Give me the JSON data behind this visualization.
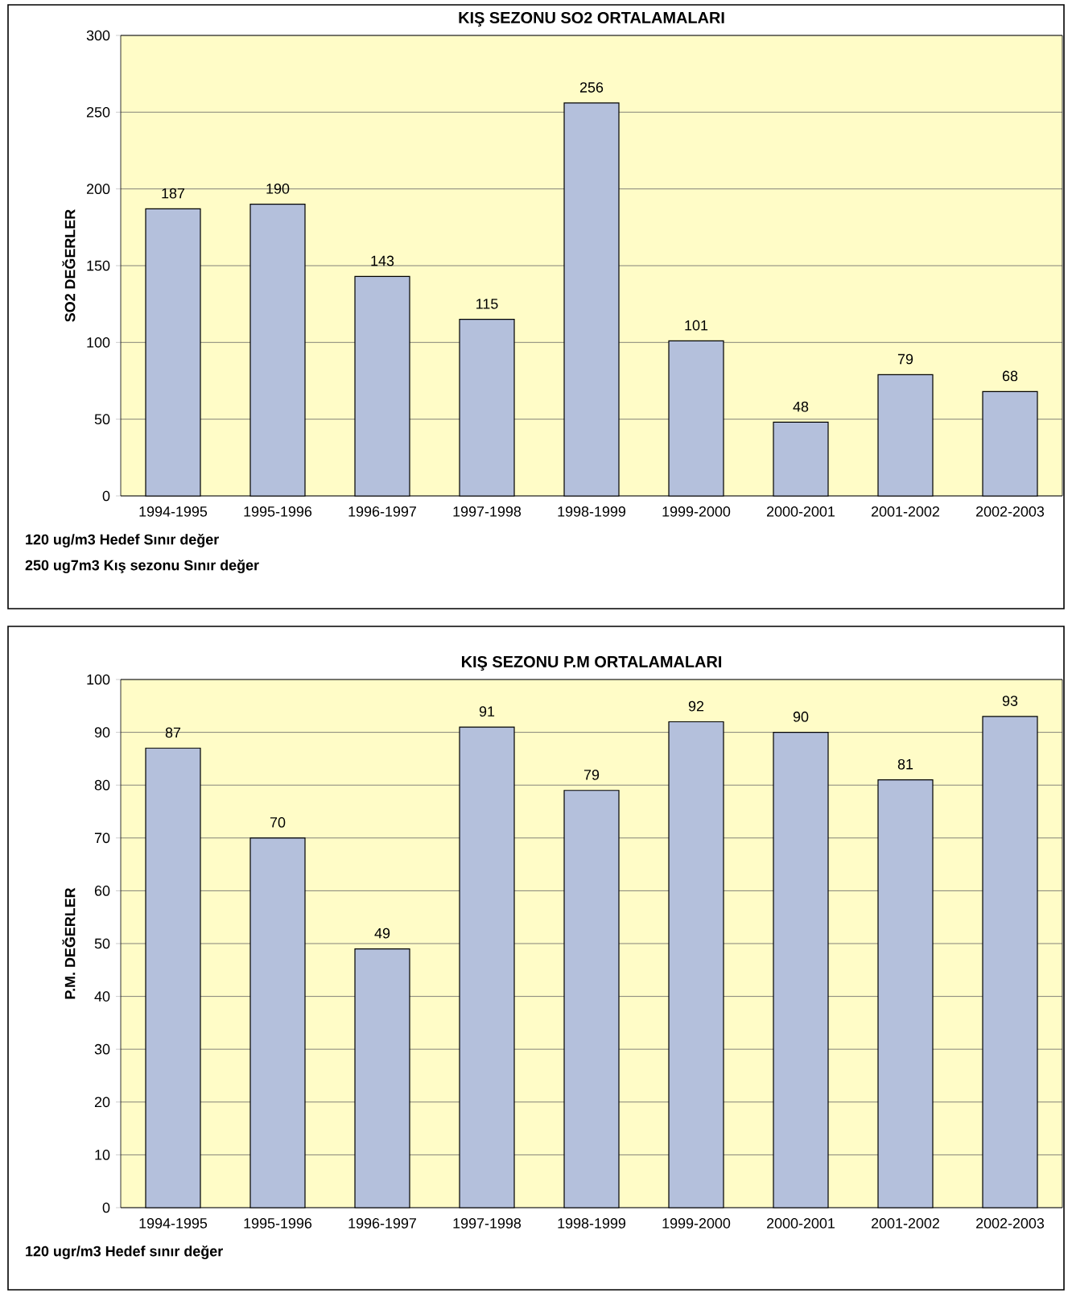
{
  "chart_data": [
    {
      "type": "bar",
      "title": "KIŞ SEZONU SO2 ORTALAMALARI",
      "ylabel": "SO2 DEĞERLER",
      "categories": [
        "1994-1995",
        "1995-1996",
        "1996-1997",
        "1997-1998",
        "1998-1999",
        "1999-2000",
        "2000-2001",
        "2001-2002",
        "2002-2003"
      ],
      "values": [
        187,
        190,
        143,
        115,
        256,
        101,
        48,
        79,
        68
      ],
      "color": "#b4c0dc",
      "ylim": [
        0,
        300
      ],
      "yticks": [
        0,
        50,
        100,
        150,
        200,
        250,
        300
      ],
      "grid": "y",
      "data_labels": true,
      "annotations": [
        "120 ug/m3 Hedef Sınır değer",
        "250 ug7m3 Kış sezonu Sınır değer"
      ]
    },
    {
      "type": "bar",
      "title": "KIŞ SEZONU P.M ORTALAMALARI",
      "ylabel": "P.M. DEĞERLER",
      "categories": [
        "1994-1995",
        "1995-1996",
        "1996-1997",
        "1997-1998",
        "1998-1999",
        "1999-2000",
        "2000-2001",
        "2001-2002",
        "2002-2003"
      ],
      "values": [
        87,
        70,
        49,
        91,
        79,
        92,
        90,
        81,
        93
      ],
      "color": "#b4c0dc",
      "ylim": [
        0,
        100
      ],
      "yticks": [
        0,
        10,
        20,
        30,
        40,
        50,
        60,
        70,
        80,
        90,
        100
      ],
      "grid": "y",
      "data_labels": true,
      "annotations": [
        "120 ugr/m3 Hedef sınır değer"
      ]
    }
  ]
}
